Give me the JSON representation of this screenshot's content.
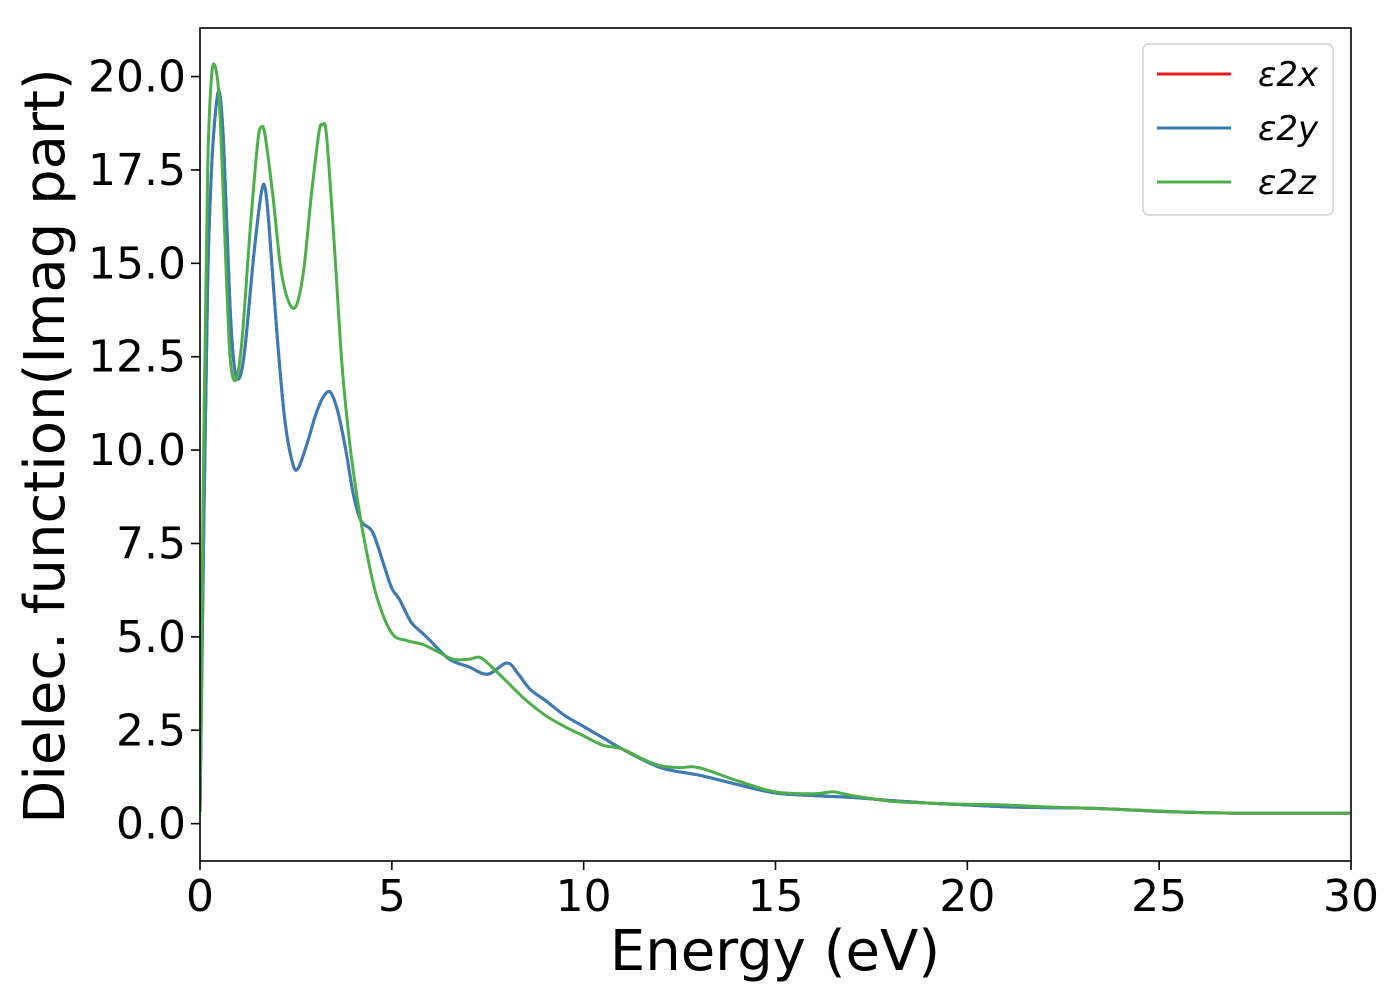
{
  "chart_data": {
    "type": "line",
    "title": "",
    "xlabel": "Energy (eV)",
    "ylabel": "Dielec. function(Imag part)",
    "xlim": [
      0,
      30
    ],
    "ylim": [
      -1.0,
      21.3
    ],
    "xticks": [
      0,
      5,
      10,
      15,
      20,
      25,
      30
    ],
    "xtick_labels": [
      "0",
      "5",
      "10",
      "15",
      "20",
      "25",
      "30"
    ],
    "yticks": [
      0.0,
      2.5,
      5.0,
      7.5,
      10.0,
      12.5,
      15.0,
      17.5,
      20.0
    ],
    "ytick_labels": [
      "0.0",
      "2.5",
      "5.0",
      "7.5",
      "10.0",
      "12.5",
      "15.0",
      "17.5",
      "20.0"
    ],
    "grid": false,
    "legend": "top-right",
    "series": [
      {
        "name": "ε2x",
        "color": "#e41a1c",
        "x": [
          0,
          0.1,
          0.2,
          0.3,
          0.4,
          0.5,
          0.6,
          0.7,
          0.8,
          0.9,
          1.0,
          1.1,
          1.2,
          1.4,
          1.6,
          1.7,
          1.8,
          2.0,
          2.2,
          2.4,
          2.55,
          2.8,
          3.0,
          3.2,
          3.4,
          3.6,
          3.8,
          4.0,
          4.2,
          4.5,
          4.8,
          5.0,
          5.2,
          5.5,
          5.8,
          6.0,
          6.5,
          7.0,
          7.5,
          8.0,
          8.3,
          8.6,
          9.0,
          9.5,
          10.0,
          10.5,
          11.0,
          12.0,
          13.0,
          14.0,
          15.0,
          16.0,
          17.0,
          18.0,
          19.0,
          20.0,
          21.0,
          22.0,
          23.0,
          24.0,
          25.0,
          26.0,
          27.0,
          28.0,
          29.0,
          30.0
        ],
        "y": [
          0.3,
          8.0,
          14.5,
          17.5,
          19.0,
          19.6,
          18.5,
          16.0,
          13.5,
          12.2,
          11.9,
          12.2,
          13.0,
          15.2,
          16.9,
          17.0,
          16.0,
          13.2,
          10.9,
          9.7,
          9.5,
          10.2,
          10.9,
          11.4,
          11.55,
          11.0,
          10.0,
          8.8,
          8.1,
          7.8,
          6.9,
          6.3,
          6.0,
          5.4,
          5.1,
          4.9,
          4.4,
          4.2,
          4.0,
          4.3,
          4.0,
          3.6,
          3.3,
          2.9,
          2.6,
          2.3,
          2.0,
          1.5,
          1.3,
          1.05,
          0.82,
          0.75,
          0.7,
          0.62,
          0.55,
          0.5,
          0.45,
          0.43,
          0.42,
          0.38,
          0.33,
          0.3,
          0.28,
          0.28,
          0.28,
          0.28
        ]
      },
      {
        "name": "ε2y",
        "color": "#377eb8",
        "x": [
          0,
          0.1,
          0.2,
          0.3,
          0.4,
          0.5,
          0.6,
          0.7,
          0.8,
          0.9,
          1.0,
          1.1,
          1.2,
          1.4,
          1.6,
          1.7,
          1.8,
          2.0,
          2.2,
          2.4,
          2.55,
          2.8,
          3.0,
          3.2,
          3.4,
          3.6,
          3.8,
          4.0,
          4.2,
          4.5,
          4.8,
          5.0,
          5.2,
          5.5,
          5.8,
          6.0,
          6.5,
          7.0,
          7.5,
          8.0,
          8.3,
          8.6,
          9.0,
          9.5,
          10.0,
          10.5,
          11.0,
          12.0,
          13.0,
          14.0,
          15.0,
          16.0,
          17.0,
          18.0,
          19.0,
          20.0,
          21.0,
          22.0,
          23.0,
          24.0,
          25.0,
          26.0,
          27.0,
          28.0,
          29.0,
          30.0
        ],
        "y": [
          0.3,
          8.0,
          14.5,
          17.5,
          19.0,
          19.6,
          18.5,
          16.0,
          13.5,
          12.2,
          11.9,
          12.2,
          13.0,
          15.2,
          16.9,
          17.0,
          16.0,
          13.2,
          10.9,
          9.7,
          9.5,
          10.2,
          10.9,
          11.4,
          11.55,
          11.0,
          10.0,
          8.8,
          8.1,
          7.8,
          6.9,
          6.3,
          6.0,
          5.4,
          5.1,
          4.9,
          4.4,
          4.2,
          4.0,
          4.3,
          4.0,
          3.6,
          3.3,
          2.9,
          2.6,
          2.3,
          2.0,
          1.5,
          1.3,
          1.05,
          0.82,
          0.75,
          0.7,
          0.62,
          0.55,
          0.5,
          0.45,
          0.43,
          0.42,
          0.38,
          0.33,
          0.3,
          0.28,
          0.28,
          0.28,
          0.28
        ]
      },
      {
        "name": "ε2z",
        "color": "#4daf4a",
        "x": [
          0,
          0.1,
          0.2,
          0.3,
          0.4,
          0.5,
          0.6,
          0.7,
          0.8,
          0.95,
          1.1,
          1.3,
          1.5,
          1.6,
          1.7,
          1.9,
          2.1,
          2.3,
          2.5,
          2.7,
          2.9,
          3.1,
          3.2,
          3.3,
          3.5,
          3.7,
          3.9,
          4.1,
          4.3,
          4.6,
          5.0,
          5.4,
          5.8,
          6.2,
          6.6,
          7.0,
          7.3,
          7.6,
          8.0,
          8.5,
          9.0,
          9.5,
          10.0,
          10.5,
          11.0,
          11.5,
          12.0,
          12.5,
          13.0,
          14.0,
          15.0,
          16.0,
          16.5,
          17.0,
          18.0,
          19.0,
          20.0,
          21.0,
          22.0,
          23.0,
          24.0,
          25.0,
          26.0,
          27.0,
          28.0,
          29.0,
          30.0
        ],
        "y": [
          0.3,
          10.5,
          17.5,
          20.0,
          20.25,
          19.4,
          17.0,
          14.3,
          12.3,
          11.9,
          13.0,
          15.8,
          18.2,
          18.65,
          18.4,
          16.8,
          14.9,
          14.0,
          13.85,
          14.8,
          16.8,
          18.5,
          18.7,
          18.4,
          15.5,
          12.3,
          10.2,
          8.7,
          7.5,
          6.1,
          5.1,
          4.9,
          4.8,
          4.6,
          4.4,
          4.4,
          4.45,
          4.2,
          3.8,
          3.3,
          2.9,
          2.6,
          2.35,
          2.1,
          2.0,
          1.75,
          1.55,
          1.5,
          1.5,
          1.15,
          0.85,
          0.8,
          0.85,
          0.75,
          0.6,
          0.55,
          0.52,
          0.5,
          0.45,
          0.42,
          0.38,
          0.34,
          0.3,
          0.28,
          0.28,
          0.28,
          0.28
        ]
      }
    ]
  }
}
